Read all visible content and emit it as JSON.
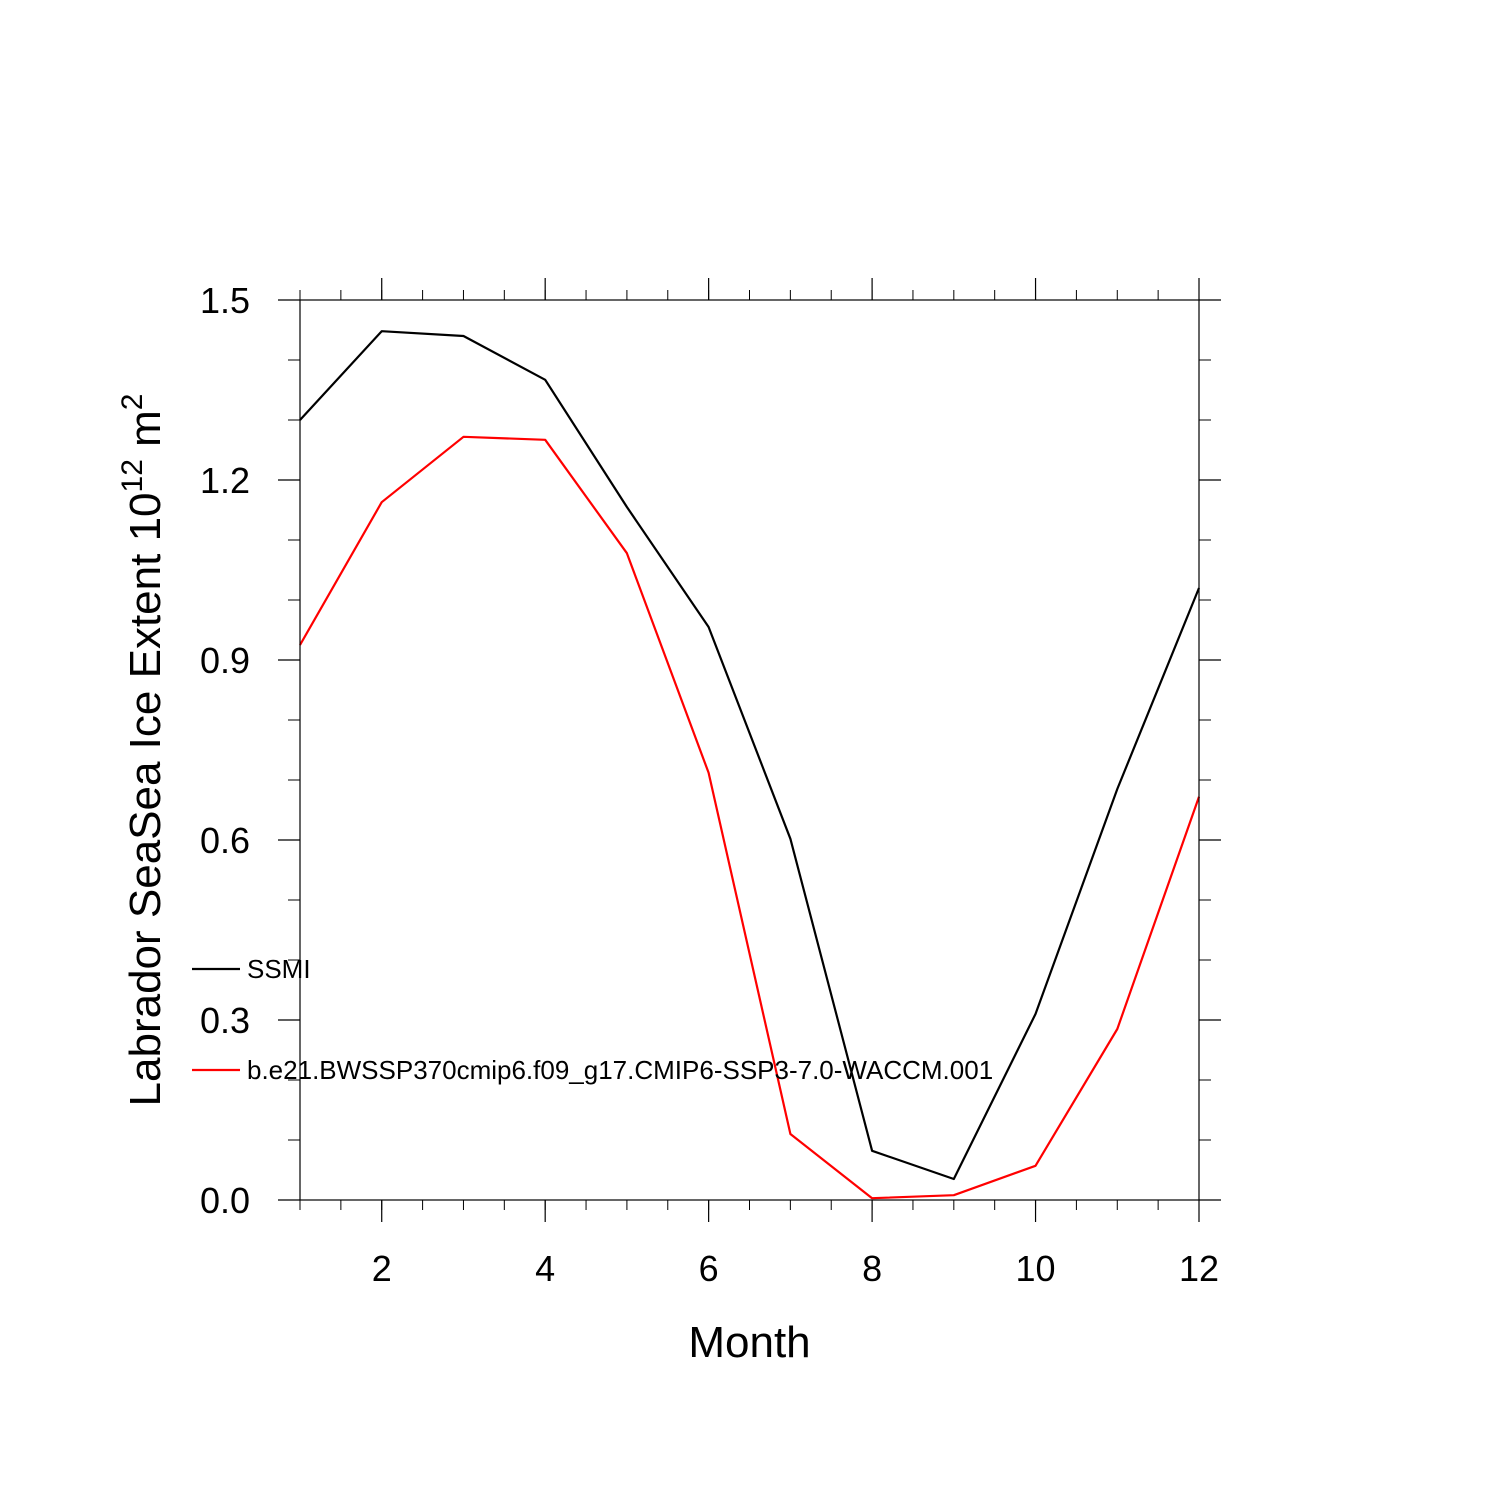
{
  "chart_data": {
    "type": "line",
    "xlabel": "Month",
    "ylabel": {
      "main": "Labrador SeaSea Ice Extent 10",
      "exponent": "12",
      "unit": "m",
      "unit_exponent": "2"
    },
    "xlim": [
      1,
      12
    ],
    "ylim": [
      0,
      1.5
    ],
    "x_ticks": [
      2,
      4,
      6,
      8,
      10,
      12
    ],
    "x_tick_labels": [
      "2",
      "4",
      "6",
      "8",
      "10",
      "12"
    ],
    "y_ticks": [
      0,
      0.3,
      0.6,
      0.9,
      1.2,
      1.5
    ],
    "y_tick_labels": [
      "0.0",
      "0.3",
      "0.6",
      "0.9",
      "1.2",
      "1.5"
    ],
    "grid": false,
    "legend_position": "left-inside",
    "x": [
      1,
      2,
      3,
      4,
      5,
      6,
      7,
      8,
      9,
      10,
      11,
      12
    ],
    "series": [
      {
        "name": "SSMI",
        "color": "#000000",
        "values": [
          1.3,
          1.448,
          1.44,
          1.367,
          1.155,
          0.955,
          0.602,
          0.082,
          0.035,
          0.31,
          0.685,
          1.02
        ]
      },
      {
        "name": "b.e21.BWSSP370cmip6.f09_g17.CMIP6-SSP3-7.0-WACCM.001",
        "color": "#ff0000",
        "values": [
          0.925,
          1.163,
          1.272,
          1.267,
          1.078,
          0.712,
          0.11,
          0.003,
          0.008,
          0.057,
          0.285,
          0.672
        ]
      }
    ]
  }
}
